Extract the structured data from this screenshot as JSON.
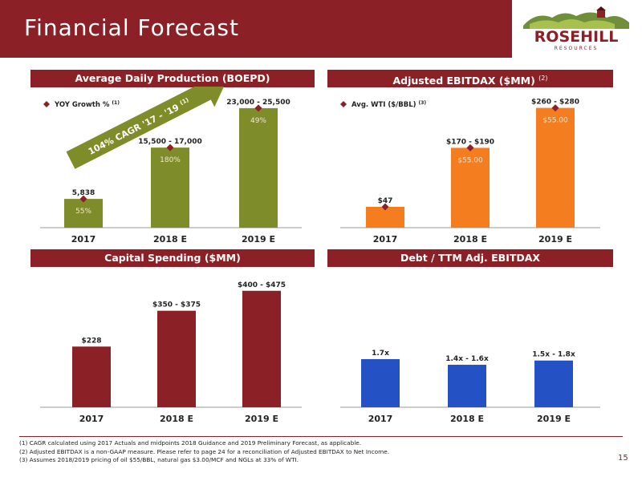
{
  "header": {
    "title": "Financial Forecast"
  },
  "logo": {
    "name": "ROSEHILL",
    "tagline": "RESOURCES"
  },
  "panels": [
    {
      "title": "Average Daily Production (BOEPD)",
      "sup": ""
    },
    {
      "title": "Adjusted EBITDAX ($MM)",
      "sup": "(2)"
    },
    {
      "title": "Capital Spending ($MM)",
      "sup": ""
    },
    {
      "title": "Debt / TTM Adj. EBITDAX",
      "sup": ""
    }
  ],
  "annotation": {
    "cagr": "104% CAGR '17 - '19",
    "cagr_sup": "(1)"
  },
  "colors": {
    "brand": "#8b2027",
    "olive": "#7f8c2a",
    "orange": "#f47d20",
    "blue": "#2452c4",
    "marker": "#8b2027"
  },
  "chart_data": [
    {
      "type": "bar",
      "categories": [
        "2017",
        "2018 E",
        "2019 E"
      ],
      "values": [
        5838,
        16250,
        24250
      ],
      "data_labels": [
        "5,838",
        "15,500 - 17,000",
        "23,000 - 25,500"
      ],
      "ylim": [
        0,
        27000
      ],
      "color": "#7f8c2a",
      "secondary": {
        "name": "YOY Growth %",
        "sup": "(1)",
        "values": [
          55,
          180,
          49
        ],
        "labels": [
          "55%",
          "180%",
          "49%"
        ],
        "ylim": [
          0,
          250
        ]
      }
    },
    {
      "type": "bar",
      "categories": [
        "2017",
        "2018 E",
        "2019 E"
      ],
      "values": [
        47,
        180,
        270
      ],
      "data_labels": [
        "$47",
        "$170 - $190",
        "$260 - $280"
      ],
      "ylim": [
        0,
        300
      ],
      "color": "#f47d20",
      "secondary": {
        "name": "Avg. WTI ($/BBL)",
        "sup": "(3)",
        "values": [
          null,
          55,
          55
        ],
        "labels": [
          "",
          "$55.00",
          "$55.00"
        ],
        "ylim": [
          0,
          70
        ]
      }
    },
    {
      "type": "bar",
      "categories": [
        "2017",
        "2018 E",
        "2019 E"
      ],
      "values": [
        228,
        362.5,
        437.5
      ],
      "data_labels": [
        "$228",
        "$350 - $375",
        "$400 - $475"
      ],
      "ylim": [
        0,
        500
      ],
      "color": "#8b2027"
    },
    {
      "type": "bar",
      "categories": [
        "2017",
        "2018 E",
        "2019 E"
      ],
      "values": [
        1.7,
        1.5,
        1.65
      ],
      "data_labels": [
        "1.7x",
        "1.4x - 1.6x",
        "1.5x - 1.8x"
      ],
      "ylim": [
        0,
        4.7
      ],
      "color": "#2452c4"
    }
  ],
  "footnotes": [
    "(1) CAGR calculated using 2017 Actuals and midpoints 2018 Guidance and 2019 Preliminary Forecast, as applicable.",
    "(2) Adjusted EBITDAX is a non-GAAP measure. Please refer to page 24 for a reconciliation of Adjusted EBITDAX to Net Income.",
    "(3) Assumes 2018/2019 pricing of oil $55/BBL, natural gas $3.00/MCF and NGLs at 33% of WTI."
  ],
  "page_number": "15"
}
